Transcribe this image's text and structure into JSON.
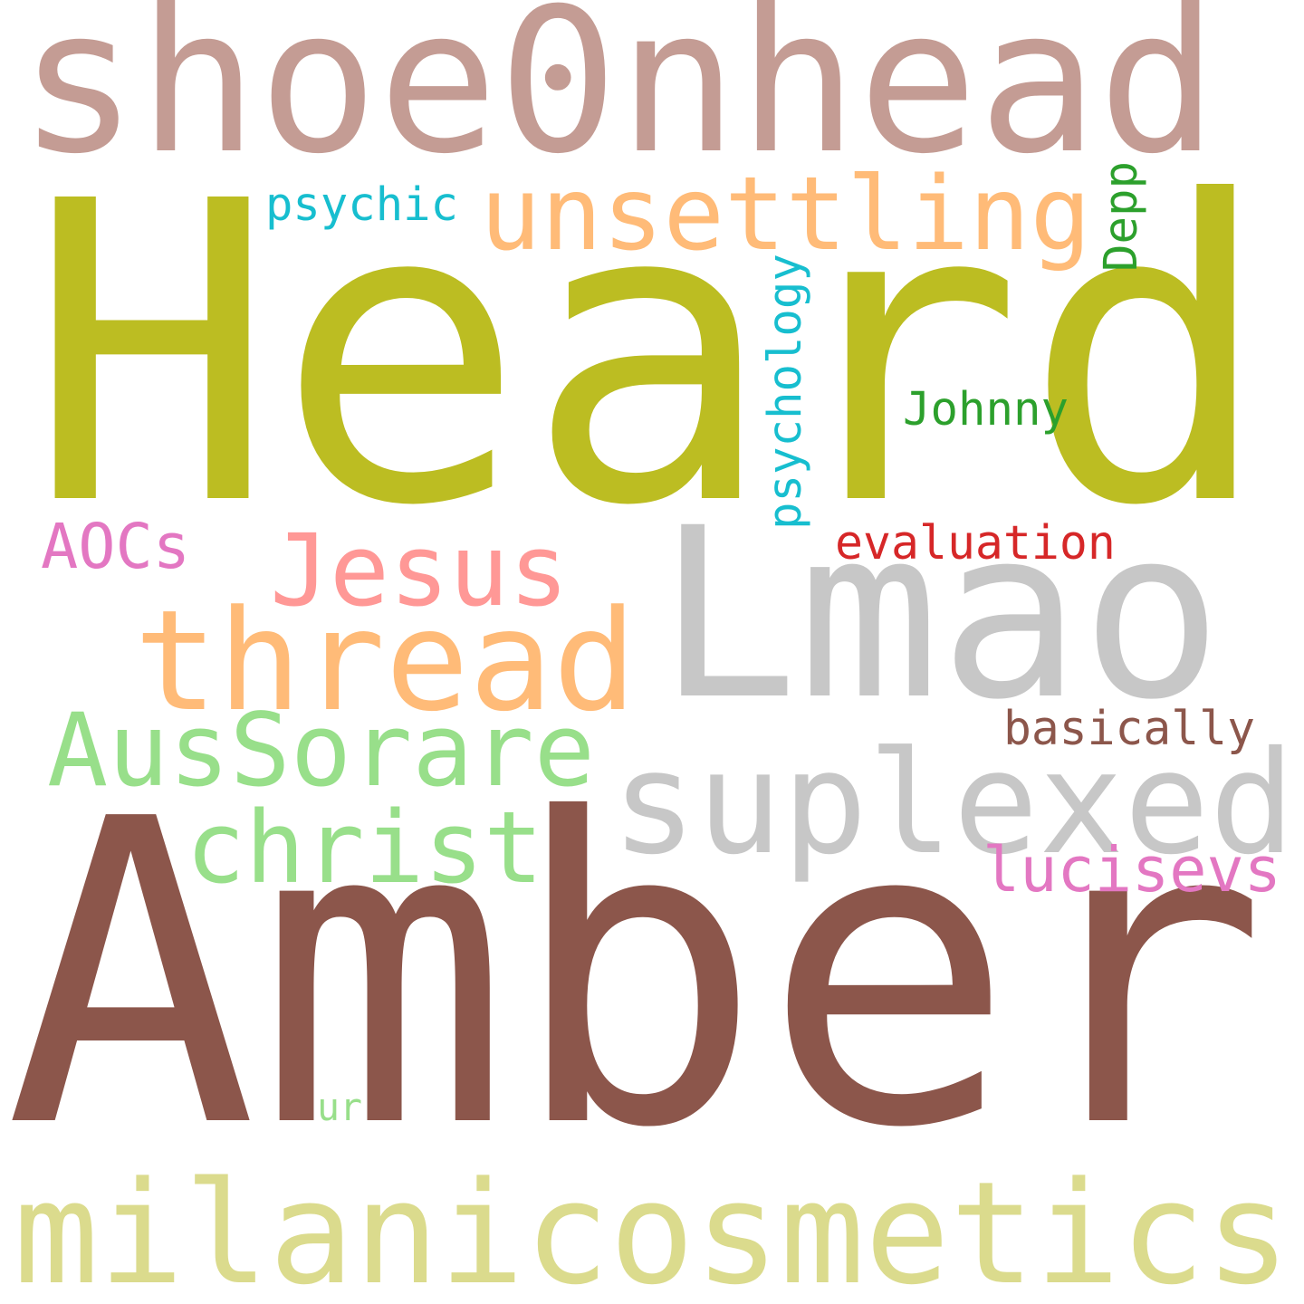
{
  "words": [
    {
      "text": "Heard",
      "color": "#bcbd22"
    },
    {
      "text": "Amber",
      "color": "#8c564b"
    },
    {
      "text": "Lmao",
      "color": "#c7c7c7"
    },
    {
      "text": "shoe0nhead",
      "color": "#c49c94"
    },
    {
      "text": "milanicosmetics",
      "color": "#dbdb8d"
    },
    {
      "text": "suplexed",
      "color": "#c7c7c7"
    },
    {
      "text": "unsettling",
      "color": "#ffbb78"
    },
    {
      "text": "thread",
      "color": "#ffbb78"
    },
    {
      "text": "AusSorare",
      "color": "#98df8a"
    },
    {
      "text": "christ",
      "color": "#98df8a"
    },
    {
      "text": "Jesus",
      "color": "#ff9896"
    },
    {
      "text": "lucisevs",
      "color": "#e377c2"
    },
    {
      "text": "psychology",
      "color": "#17becf"
    },
    {
      "text": "evaluation",
      "color": "#d62728"
    },
    {
      "text": "basically",
      "color": "#8c564b"
    },
    {
      "text": "AOCs",
      "color": "#e377c2"
    },
    {
      "text": "psychic",
      "color": "#17becf"
    },
    {
      "text": "Johnny",
      "color": "#2ca02c"
    },
    {
      "text": "Depp",
      "color": "#2ca02c"
    },
    {
      "text": "ur",
      "color": "#98df8a"
    }
  ]
}
